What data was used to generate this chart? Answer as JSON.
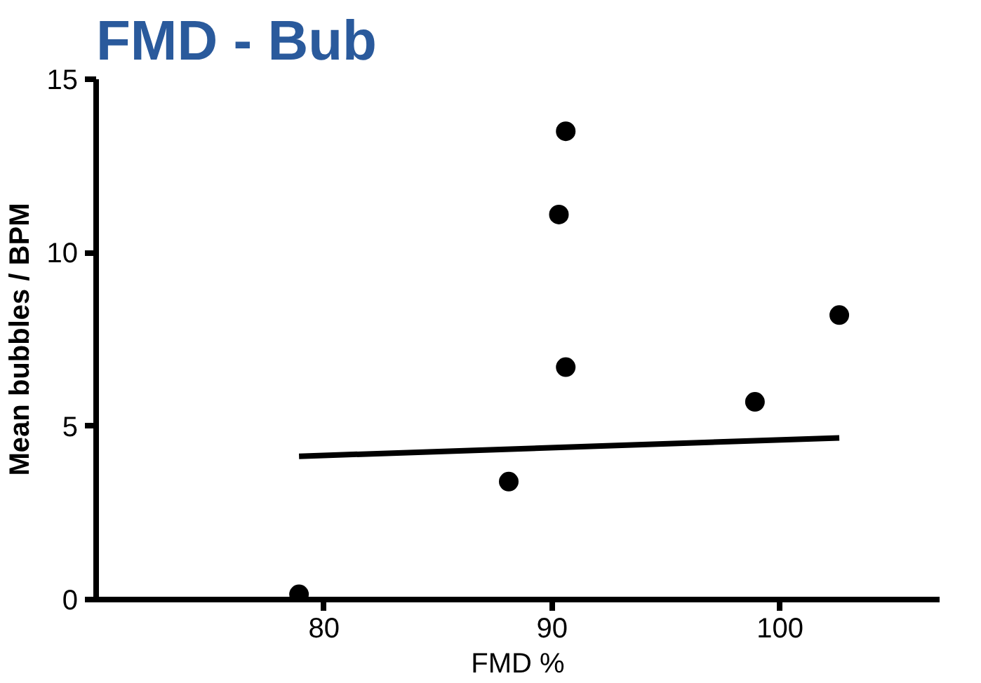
{
  "chart_data": {
    "type": "scatter",
    "title": "FMD - Bub",
    "xlabel": "FMD %",
    "ylabel": "Mean bubbles / BPM",
    "xlim": [
      70,
      107
    ],
    "ylim": [
      0,
      15
    ],
    "xticks": [
      80,
      90,
      100
    ],
    "yticks": [
      0,
      5,
      10,
      15
    ],
    "grid": false,
    "series": [
      {
        "color": "#000000",
        "marker": "circle",
        "x": [
          78.9,
          88.1,
          90.3,
          90.6,
          90.6,
          98.9,
          102.6
        ],
        "values": [
          0.15,
          3.4,
          11.1,
          13.5,
          6.7,
          5.7,
          8.2
        ]
      },
      {
        "type": "line",
        "color": "#000000",
        "line_style": "solid",
        "x": [
          78.9,
          102.6
        ],
        "values": [
          4.13,
          4.66
        ]
      }
    ]
  }
}
